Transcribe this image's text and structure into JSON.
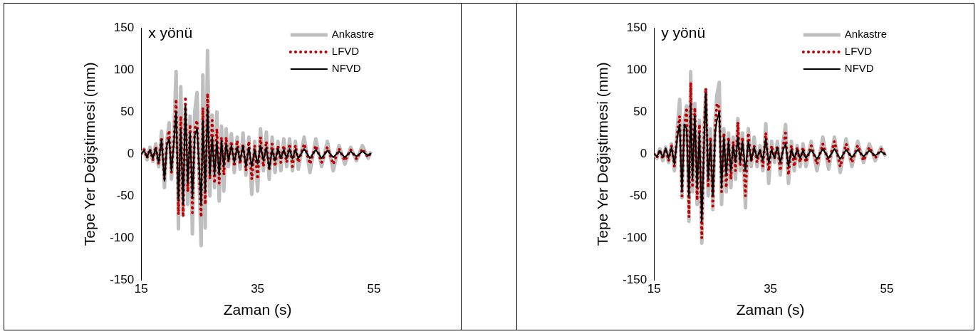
{
  "chart_data": [
    {
      "type": "line",
      "title": "x yönü",
      "xlabel": "Zaman (s)",
      "ylabel": "Tepe Yer Değiştirmesi (mm)",
      "xlim": [
        15,
        55
      ],
      "xticks": [
        15,
        35,
        55
      ],
      "ylim": [
        -150,
        150
      ],
      "yticks": [
        -150,
        -100,
        -50,
        0,
        50,
        100,
        150
      ],
      "grid": false,
      "legend": "top right",
      "marker": "none",
      "x": [
        15,
        15.5,
        16,
        16.5,
        17,
        17.5,
        18,
        18.5,
        19,
        19.4,
        19.8,
        20.2,
        20.6,
        21,
        21.4,
        21.8,
        22.2,
        22.6,
        23,
        23.4,
        23.8,
        24.2,
        24.6,
        25,
        25.3,
        25.6,
        26,
        26.4,
        26.8,
        27.2,
        27.6,
        28,
        28.4,
        28.8,
        29.2,
        29.6,
        30,
        30.5,
        31,
        31.5,
        32,
        32.5,
        33,
        33.5,
        34,
        34.5,
        35,
        35.5,
        36,
        36.5,
        37,
        37.5,
        38,
        38.5,
        39,
        39.5,
        40,
        40.5,
        41,
        41.5,
        42,
        43,
        44,
        45,
        46,
        47,
        48,
        49,
        50,
        51,
        52,
        53,
        54,
        54.5
      ],
      "series": [
        {
          "name": "Ankastre",
          "color": "#bfbfbf",
          "line_style": "solid",
          "values": [
            0,
            6,
            -7,
            8,
            -9,
            12,
            -15,
            27,
            -40,
            15,
            37,
            -30,
            20,
            98,
            -89,
            80,
            -70,
            55,
            -60,
            45,
            -95,
            50,
            73,
            -40,
            -109,
            94,
            -88,
            123,
            -50,
            46,
            -40,
            50,
            -56,
            33,
            -44,
            30,
            -15,
            24,
            -22,
            20,
            -18,
            25,
            -25,
            20,
            -48,
            15,
            -44,
            30,
            -20,
            26,
            -30,
            20,
            -22,
            15,
            -20,
            18,
            -15,
            18,
            -20,
            15,
            -18,
            20,
            -22,
            18,
            -15,
            15,
            -20,
            10,
            -12,
            8,
            -8,
            10,
            -5,
            3
          ]
        },
        {
          "name": "LFVD",
          "color": "#c00000",
          "line_style": "dotted",
          "values": [
            0,
            5,
            -5,
            6,
            -7,
            9,
            -12,
            20,
            -30,
            12,
            28,
            -22,
            15,
            65,
            -72,
            45,
            -75,
            68,
            -45,
            35,
            -70,
            30,
            40,
            -30,
            -75,
            55,
            -60,
            72,
            -30,
            40,
            -35,
            30,
            -35,
            20,
            -25,
            20,
            -10,
            15,
            -15,
            16,
            -12,
            12,
            -20,
            15,
            -30,
            10,
            -30,
            20,
            -15,
            15,
            -20,
            12,
            -15,
            10,
            -10,
            10,
            -10,
            12,
            -15,
            10,
            -10,
            12,
            -12,
            10,
            -10,
            8,
            -12,
            6,
            -8,
            5,
            -6,
            6,
            -4,
            2
          ]
        },
        {
          "name": "NFVD",
          "color": "#000000",
          "line_style": "solid",
          "values": [
            0,
            4,
            -4,
            5,
            -5,
            7,
            -10,
            17,
            -32,
            10,
            18,
            -20,
            12,
            50,
            -55,
            30,
            -60,
            58,
            -35,
            25,
            -52,
            22,
            30,
            -20,
            -60,
            40,
            -45,
            55,
            -25,
            20,
            -25,
            15,
            -25,
            15,
            -15,
            12,
            -8,
            10,
            -10,
            8,
            -8,
            10,
            -15,
            8,
            -15,
            5,
            -12,
            10,
            -8,
            8,
            -18,
            5,
            -8,
            6,
            -5,
            5,
            -5,
            6,
            -6,
            5,
            -5,
            6,
            -5,
            5,
            -5,
            4,
            -4,
            3,
            -4,
            3,
            -3,
            3,
            -2,
            1
          ]
        }
      ]
    },
    {
      "type": "line",
      "title": "y yönü",
      "xlabel": "Zaman (s)",
      "ylabel": "Tepe Yer Değiştirmesi (mm)",
      "xlim": [
        15,
        55
      ],
      "xticks": [
        15,
        35,
        55
      ],
      "ylim": [
        -150,
        150
      ],
      "yticks": [
        -150,
        -100,
        -50,
        0,
        50,
        100,
        150
      ],
      "grid": false,
      "legend": "top right",
      "marker": "none",
      "x": [
        15,
        15.5,
        16,
        16.5,
        17,
        17.5,
        18,
        18.5,
        19,
        19.4,
        19.8,
        20.2,
        20.6,
        21,
        21.3,
        21.6,
        22,
        22.4,
        22.8,
        23.2,
        23.6,
        23.9,
        24.3,
        24.7,
        25.1,
        25.5,
        25.8,
        26.2,
        26.6,
        27,
        27.4,
        27.8,
        28.2,
        28.6,
        29,
        29.4,
        29.8,
        30.2,
        30.7,
        31.2,
        31.7,
        32.2,
        32.7,
        33.2,
        33.7,
        34.2,
        34.7,
        35.2,
        35.7,
        36.2,
        36.7,
        37.2,
        37.6,
        38.1,
        38.6,
        39.1,
        39.6,
        40.1,
        40.6,
        41.1,
        42,
        43,
        44,
        45,
        46,
        47,
        48,
        49,
        50,
        51,
        52,
        53,
        54,
        54.8
      ],
      "series": [
        {
          "name": "Ankastre",
          "color": "#bfbfbf",
          "line_style": "solid",
          "values": [
            0,
            -5,
            6,
            -8,
            8,
            -10,
            12,
            -20,
            30,
            65,
            -52,
            40,
            57,
            -80,
            98,
            -45,
            60,
            -60,
            40,
            -106,
            30,
            77,
            -50,
            30,
            -66,
            40,
            70,
            85,
            -60,
            30,
            -45,
            25,
            -40,
            20,
            -30,
            42,
            -20,
            25,
            -64,
            30,
            -15,
            20,
            -15,
            10,
            -20,
            36,
            -35,
            15,
            -10,
            15,
            -25,
            15,
            35,
            -35,
            15,
            -20,
            10,
            -15,
            12,
            -15,
            15,
            -20,
            20,
            -18,
            20,
            -22,
            18,
            -15,
            15,
            -10,
            12,
            -8,
            8,
            -3
          ]
        },
        {
          "name": "LFVD",
          "color": "#c00000",
          "line_style": "dotted",
          "values": [
            0,
            -4,
            5,
            -6,
            6,
            -8,
            10,
            -15,
            25,
            45,
            -50,
            30,
            55,
            -75,
            85,
            -40,
            55,
            -55,
            35,
            -100,
            25,
            78,
            -40,
            20,
            -62,
            30,
            60,
            55,
            -45,
            25,
            -40,
            20,
            -30,
            15,
            -20,
            38,
            -15,
            20,
            -50,
            25,
            -10,
            10,
            -10,
            5,
            -15,
            25,
            -20,
            10,
            -5,
            10,
            -20,
            10,
            25,
            -25,
            10,
            -15,
            8,
            -10,
            8,
            -10,
            10,
            -12,
            12,
            -10,
            15,
            -15,
            12,
            -10,
            10,
            -8,
            8,
            -5,
            6,
            -2
          ]
        },
        {
          "name": "NFVD",
          "color": "#000000",
          "line_style": "solid",
          "values": [
            0,
            -3,
            4,
            -4,
            7,
            -5,
            8,
            -12,
            20,
            35,
            -45,
            35,
            30,
            -50,
            60,
            -30,
            45,
            -40,
            25,
            -80,
            15,
            72,
            -30,
            15,
            -50,
            25,
            40,
            50,
            -40,
            20,
            -25,
            15,
            -20,
            10,
            -10,
            20,
            -10,
            15,
            -20,
            15,
            -8,
            8,
            -5,
            5,
            -8,
            18,
            -10,
            5,
            -5,
            8,
            -10,
            5,
            12,
            -15,
            5,
            -5,
            5,
            -5,
            4,
            -5,
            5,
            -6,
            6,
            -5,
            6,
            -6,
            5,
            -4,
            5,
            -3,
            4,
            -2,
            3,
            -1
          ]
        }
      ]
    }
  ]
}
